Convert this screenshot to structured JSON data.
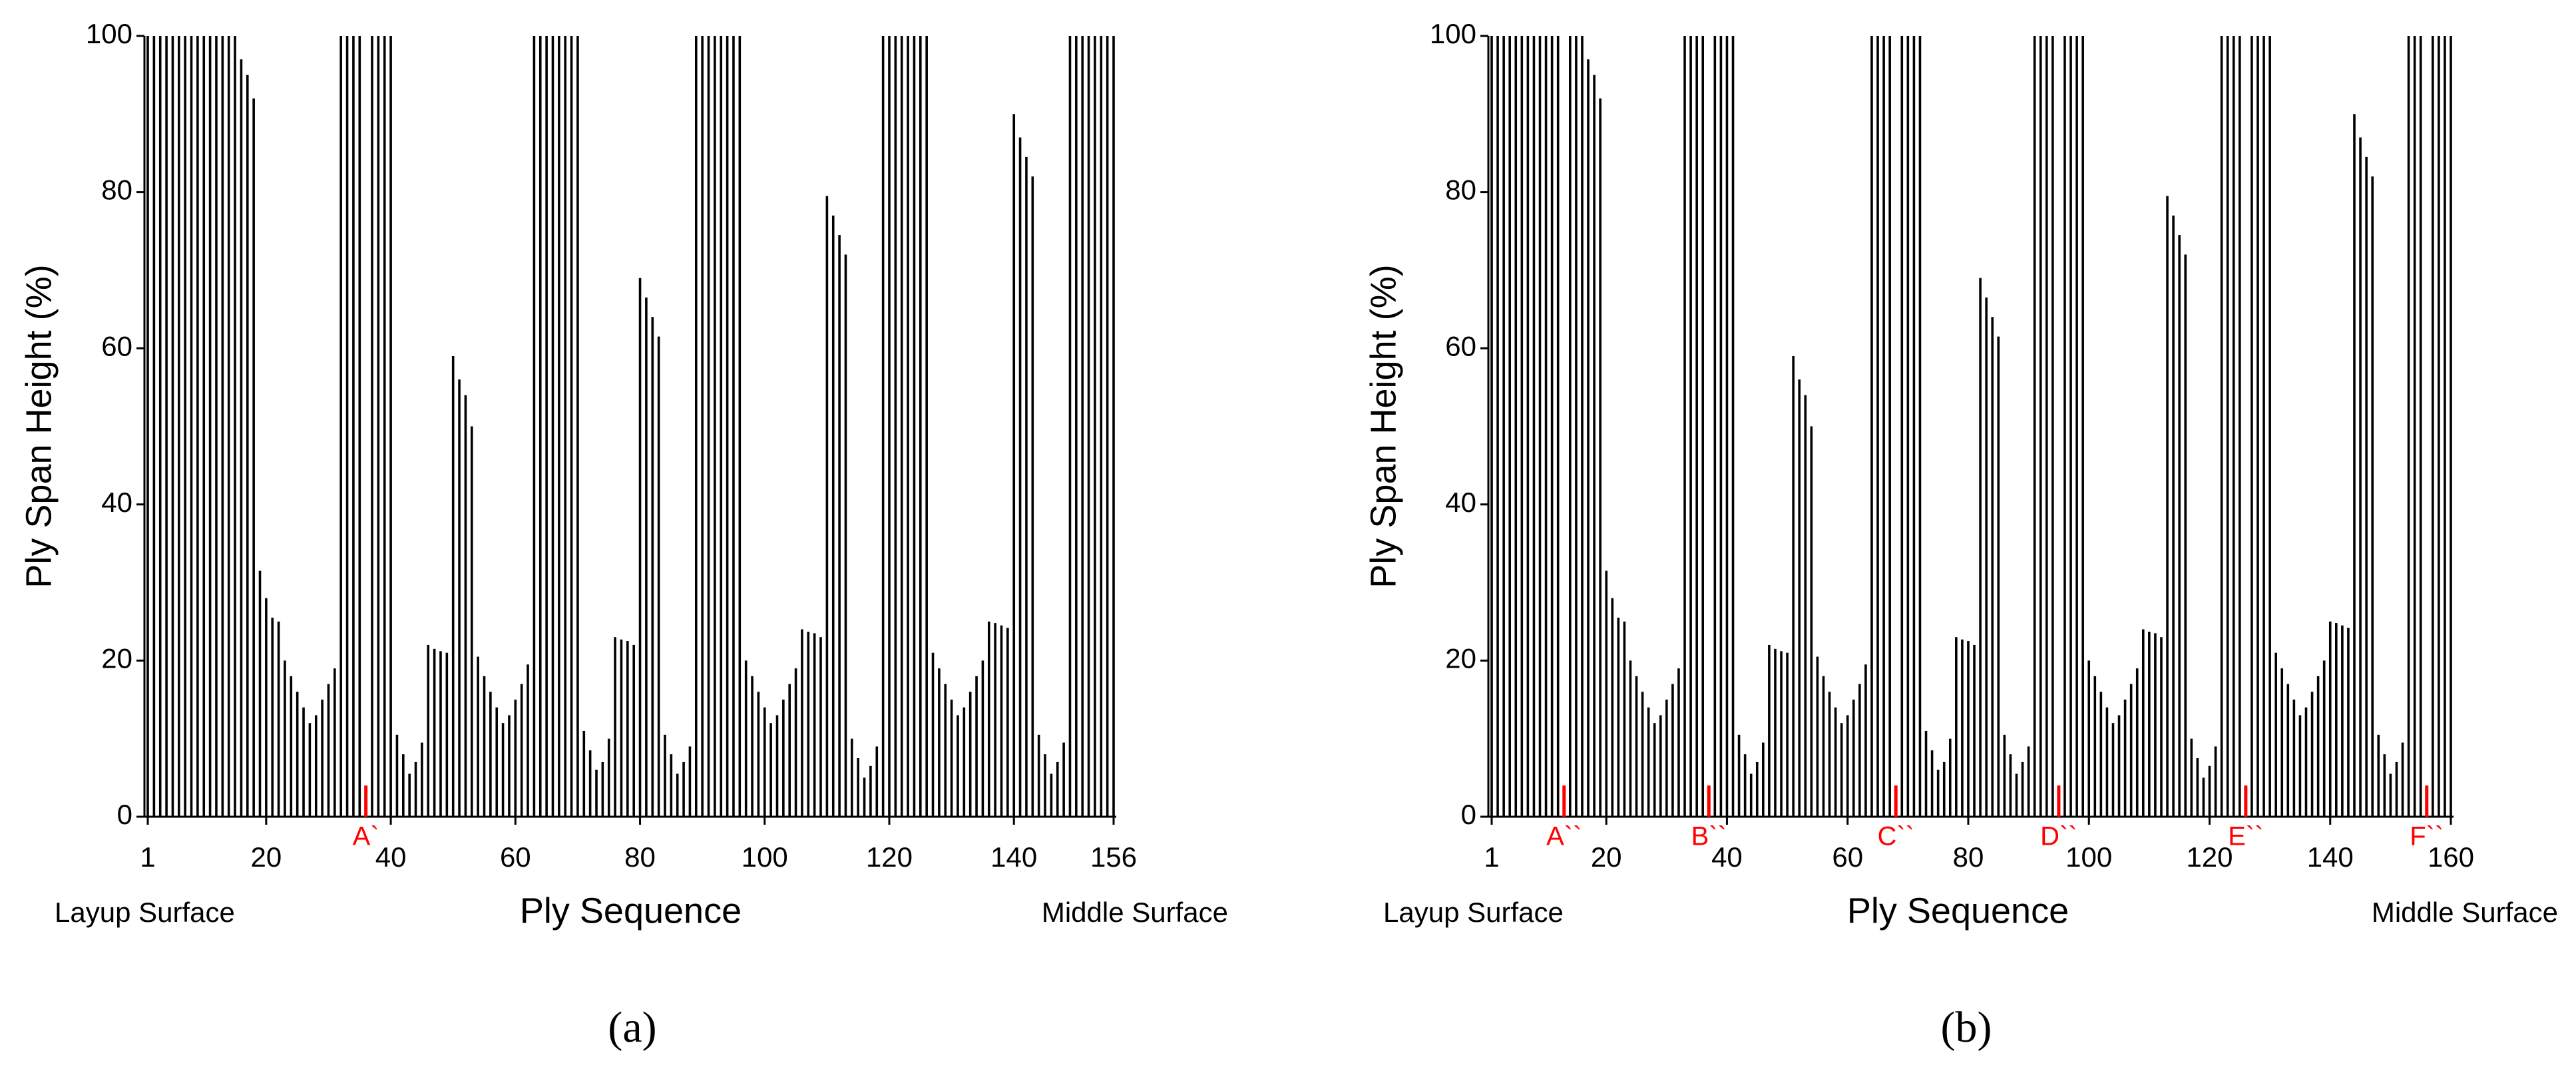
{
  "chart_data": [
    {
      "type": "bar",
      "panel_label": "(a)",
      "ylabel": "Ply Span Height (%)",
      "xlabel": "Ply Sequence",
      "left_note": "Layup Surface",
      "right_note": "Middle Surface",
      "color": "#000000",
      "marker_color": "#ff0000",
      "xlim": [
        1,
        156
      ],
      "xticks": [
        1,
        20,
        40,
        60,
        80,
        100,
        120,
        140,
        156
      ],
      "ylim": [
        0,
        100
      ],
      "yticks": [
        0,
        20,
        40,
        60,
        80,
        100
      ],
      "markers": [
        {
          "x": 36,
          "label": "A`",
          "value": 4
        }
      ],
      "x": [
        1,
        2,
        3,
        4,
        5,
        6,
        7,
        8,
        9,
        10,
        11,
        12,
        13,
        14,
        15,
        16,
        17,
        18,
        19,
        20,
        21,
        22,
        23,
        24,
        25,
        26,
        27,
        28,
        29,
        30,
        31,
        32,
        33,
        34,
        35,
        36,
        37,
        38,
        39,
        40,
        41,
        42,
        43,
        44,
        45,
        46,
        47,
        48,
        49,
        50,
        51,
        52,
        53,
        54,
        55,
        56,
        57,
        58,
        59,
        60,
        61,
        62,
        63,
        64,
        65,
        66,
        67,
        68,
        69,
        70,
        71,
        72,
        73,
        74,
        75,
        76,
        77,
        78,
        79,
        80,
        81,
        82,
        83,
        84,
        85,
        86,
        87,
        88,
        89,
        90,
        91,
        92,
        93,
        94,
        95,
        96,
        97,
        98,
        99,
        100,
        101,
        102,
        103,
        104,
        105,
        106,
        107,
        108,
        109,
        110,
        111,
        112,
        113,
        114,
        115,
        116,
        117,
        118,
        119,
        120,
        121,
        122,
        123,
        124,
        125,
        126,
        127,
        128,
        129,
        130,
        131,
        132,
        133,
        134,
        135,
        136,
        137,
        138,
        139,
        140,
        141,
        142,
        143,
        144,
        145,
        146,
        147,
        148,
        149,
        150,
        151,
        152,
        153,
        154,
        155,
        156
      ],
      "values": [
        100,
        100,
        100,
        100,
        100,
        100,
        100,
        100,
        100,
        100,
        100,
        100,
        100,
        100,
        100,
        97,
        95,
        92,
        31.5,
        28,
        25.5,
        25,
        20,
        18,
        16,
        14,
        12,
        13,
        15,
        17,
        19,
        100,
        100,
        100,
        100,
        null,
        100,
        100,
        100,
        100,
        10.5,
        8,
        5.5,
        7,
        9.5,
        22,
        21.5,
        21.2,
        21,
        59,
        56,
        54,
        50,
        20.5,
        18,
        16,
        14,
        12,
        13,
        15,
        17,
        19.5,
        100,
        100,
        100,
        100,
        100,
        100,
        100,
        100,
        11,
        8.5,
        6,
        7,
        10,
        23,
        22.7,
        22.5,
        22,
        69,
        66.5,
        64,
        61.5,
        10.5,
        8,
        5.5,
        7,
        9,
        100,
        100,
        100,
        100,
        100,
        100,
        100,
        100,
        20,
        18,
        16,
        14,
        12,
        13,
        15,
        17,
        19,
        24,
        23.7,
        23.5,
        23,
        79.5,
        77,
        74.5,
        72,
        10,
        7.5,
        5,
        6.5,
        9,
        100,
        100,
        100,
        100,
        100,
        100,
        100,
        100,
        21,
        19,
        17,
        15,
        13,
        14,
        16,
        18,
        20,
        25,
        24.8,
        24.5,
        24.2,
        90,
        87,
        84.5,
        82,
        10.5,
        8,
        5.5,
        7,
        9.5,
        100,
        100,
        100,
        100,
        100,
        100,
        100,
        100
      ]
    },
    {
      "type": "bar",
      "panel_label": "(b)",
      "ylabel": "Ply Span Height (%)",
      "xlabel": "Ply Sequence",
      "left_note": "Layup Surface",
      "right_note": "Middle Surface",
      "color": "#000000",
      "marker_color": "#ff0000",
      "xlim": [
        1,
        160
      ],
      "xticks": [
        1,
        20,
        40,
        60,
        80,
        100,
        120,
        140,
        160
      ],
      "ylim": [
        0,
        100
      ],
      "yticks": [
        0,
        20,
        40,
        60,
        80,
        100
      ],
      "markers": [
        {
          "x": 13,
          "label": "A``",
          "value": 4
        },
        {
          "x": 37,
          "label": "B``",
          "value": 4
        },
        {
          "x": 68,
          "label": "C``",
          "value": 4
        },
        {
          "x": 95,
          "label": "D``",
          "value": 4
        },
        {
          "x": 126,
          "label": "E``",
          "value": 4
        },
        {
          "x": 156,
          "label": "F``",
          "value": 4
        }
      ],
      "x": [
        1,
        2,
        3,
        4,
        5,
        6,
        7,
        8,
        9,
        10,
        11,
        12,
        13,
        14,
        15,
        16,
        17,
        18,
        19,
        20,
        21,
        22,
        23,
        24,
        25,
        26,
        27,
        28,
        29,
        30,
        31,
        32,
        33,
        34,
        35,
        36,
        37,
        38,
        39,
        40,
        41,
        42,
        43,
        44,
        45,
        46,
        47,
        48,
        49,
        50,
        51,
        52,
        53,
        54,
        55,
        56,
        57,
        58,
        59,
        60,
        61,
        62,
        63,
        64,
        65,
        66,
        67,
        68,
        69,
        70,
        71,
        72,
        73,
        74,
        75,
        76,
        77,
        78,
        79,
        80,
        81,
        82,
        83,
        84,
        85,
        86,
        87,
        88,
        89,
        90,
        91,
        92,
        93,
        94,
        95,
        96,
        97,
        98,
        99,
        100,
        101,
        102,
        103,
        104,
        105,
        106,
        107,
        108,
        109,
        110,
        111,
        112,
        113,
        114,
        115,
        116,
        117,
        118,
        119,
        120,
        121,
        122,
        123,
        124,
        125,
        126,
        127,
        128,
        129,
        130,
        131,
        132,
        133,
        134,
        135,
        136,
        137,
        138,
        139,
        140,
        141,
        142,
        143,
        144,
        145,
        146,
        147,
        148,
        149,
        150,
        151,
        152,
        153,
        154,
        155,
        156,
        157,
        158,
        159,
        160
      ],
      "values": [
        100,
        100,
        100,
        100,
        100,
        100,
        100,
        100,
        100,
        100,
        100,
        100,
        null,
        100,
        100,
        100,
        97,
        95,
        92,
        31.5,
        28,
        25.5,
        25,
        20,
        18,
        16,
        14,
        12,
        13,
        15,
        17,
        19,
        100,
        100,
        100,
        100,
        null,
        100,
        100,
        100,
        100,
        10.5,
        8,
        5.5,
        7,
        9.5,
        22,
        21.5,
        21.2,
        21,
        59,
        56,
        54,
        50,
        20.5,
        18,
        16,
        14,
        12,
        13,
        15,
        17,
        19.5,
        100,
        100,
        100,
        100,
        null,
        100,
        100,
        100,
        100,
        11,
        8.5,
        6,
        7,
        10,
        23,
        22.7,
        22.5,
        22,
        69,
        66.5,
        64,
        61.5,
        10.5,
        8,
        5.5,
        7,
        9,
        100,
        100,
        100,
        100,
        null,
        100,
        100,
        100,
        100,
        20,
        18,
        16,
        14,
        12,
        13,
        15,
        17,
        19,
        24,
        23.7,
        23.5,
        23,
        79.5,
        77,
        74.5,
        72,
        10,
        7.5,
        5,
        6.5,
        9,
        100,
        100,
        100,
        100,
        null,
        100,
        100,
        100,
        100,
        21,
        19,
        17,
        15,
        13,
        14,
        16,
        18,
        20,
        25,
        24.8,
        24.5,
        24.2,
        90,
        87,
        84.5,
        82,
        10.5,
        8,
        5.5,
        7,
        9.5,
        100,
        100,
        100,
        null,
        100,
        100,
        100,
        100
      ]
    }
  ]
}
